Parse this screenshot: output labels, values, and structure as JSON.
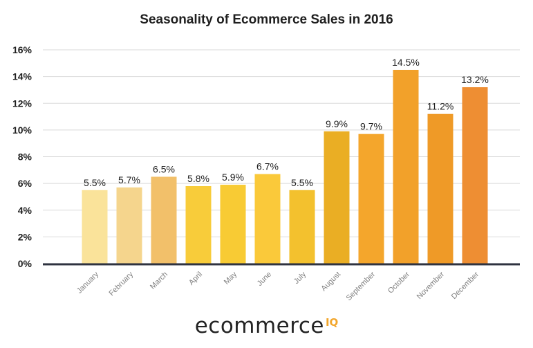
{
  "chart_data": {
    "type": "bar",
    "title": "Seasonality of Ecommerce Sales in 2016",
    "xlabel": "",
    "ylabel": "",
    "categories": [
      "January",
      "February",
      "March",
      "April",
      "May",
      "June",
      "July",
      "August",
      "September",
      "October",
      "November",
      "December"
    ],
    "values": [
      5.5,
      5.7,
      6.5,
      5.8,
      5.9,
      6.7,
      5.5,
      9.9,
      9.7,
      14.5,
      11.2,
      13.2
    ],
    "data_labels": [
      "5.5%",
      "5.7%",
      "6.5%",
      "5.8%",
      "5.9%",
      "6.7%",
      "5.5%",
      "9.9%",
      "9.7%",
      "14.5%",
      "11.2%",
      "13.2%"
    ],
    "bar_colors": [
      "#FAE39A",
      "#F5D58D",
      "#F2C06A",
      "#F8CC3A",
      "#F8CB34",
      "#FAC93A",
      "#F3C12E",
      "#EAAE24",
      "#F4A62C",
      "#F2A12A",
      "#EF9A27",
      "#EE8E33"
    ],
    "ylim": [
      0,
      16
    ],
    "yticks": [
      0,
      2,
      4,
      6,
      8,
      10,
      12,
      14,
      16
    ],
    "ytick_labels": [
      "0%",
      "2%",
      "4%",
      "6%",
      "8%",
      "10%",
      "12%",
      "14%",
      "16%"
    ],
    "grid": true,
    "legend": "none"
  },
  "logo": {
    "word": "ecommerce",
    "superscript": "IQ",
    "superscript_color": "#F2A62C"
  }
}
